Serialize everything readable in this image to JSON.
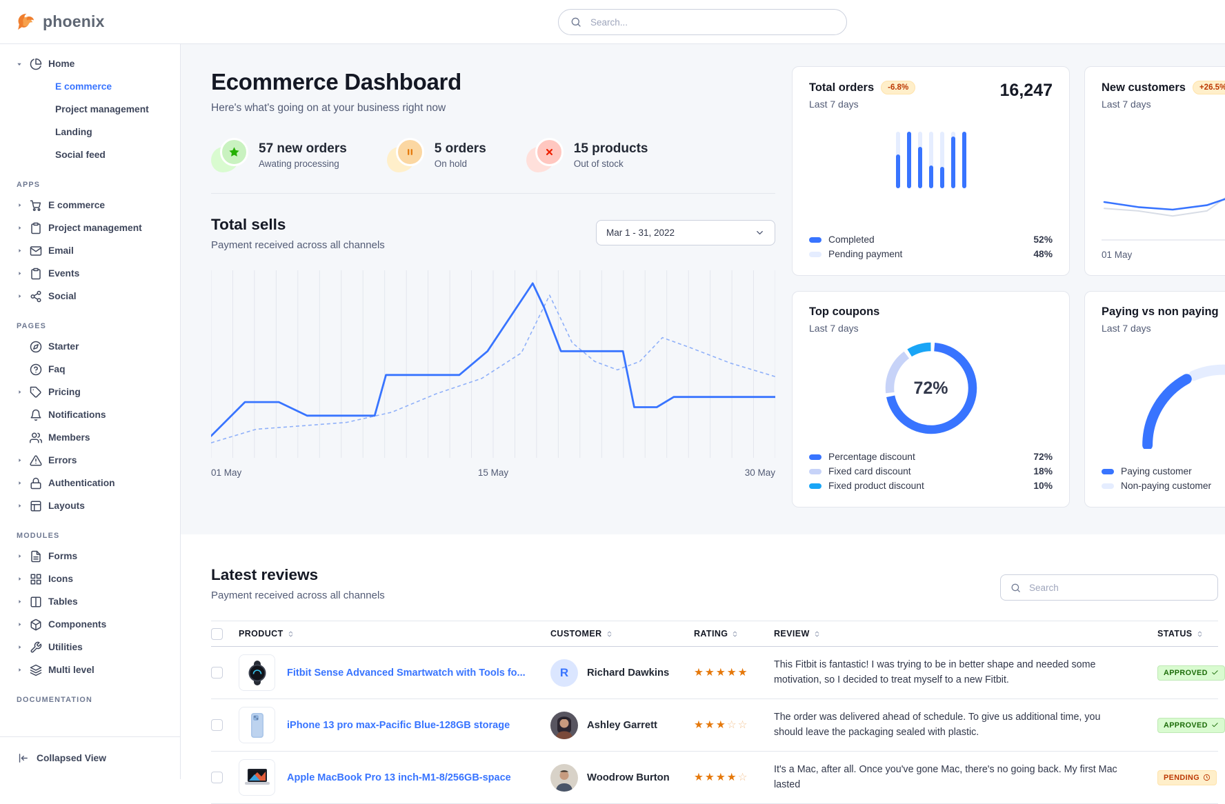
{
  "brand": {
    "name": "phoenix"
  },
  "topbar": {
    "search_placeholder": "Search..."
  },
  "theme": {
    "primary": "#3874ff",
    "primary_light": "#e5edff",
    "grid_line": "#e3e6ed",
    "dashed_line": "#8fb0f9",
    "prev_line_gray": "#d8dde6",
    "star": "#e5780b",
    "badge_warning_bg": "#ffefca",
    "badge_warning_border": "#ffe3ab",
    "badge_warning_text": "#bc3803",
    "badge_success_bg": "#d9fbd0",
    "badge_success_border": "#bee8b4",
    "badge_success_text": "#1c6c09"
  },
  "sidebar": {
    "home": {
      "label": "Home",
      "icon": "pie-chart",
      "children": [
        {
          "label": "E commerce",
          "active": true
        },
        {
          "label": "Project management",
          "active": false
        },
        {
          "label": "Landing",
          "active": false
        },
        {
          "label": "Social feed",
          "active": false
        }
      ]
    },
    "sections": [
      {
        "heading": "APPS",
        "items": [
          {
            "label": "E commerce",
            "icon": "shopping-cart",
            "caret": true
          },
          {
            "label": "Project management",
            "icon": "clipboard",
            "caret": true
          },
          {
            "label": "Email",
            "icon": "mail",
            "caret": true
          },
          {
            "label": "Events",
            "icon": "clipboard",
            "caret": true
          },
          {
            "label": "Social",
            "icon": "share",
            "caret": true
          }
        ]
      },
      {
        "heading": "PAGES",
        "items": [
          {
            "label": "Starter",
            "icon": "compass",
            "caret": false
          },
          {
            "label": "Faq",
            "icon": "help-circle",
            "caret": false
          },
          {
            "label": "Pricing",
            "icon": "tag",
            "caret": true
          },
          {
            "label": "Notifications",
            "icon": "bell",
            "caret": false
          },
          {
            "label": "Members",
            "icon": "users",
            "caret": false
          },
          {
            "label": "Errors",
            "icon": "alert-triangle",
            "caret": true
          },
          {
            "label": "Authentication",
            "icon": "lock",
            "caret": true
          },
          {
            "label": "Layouts",
            "icon": "layout",
            "caret": true
          }
        ]
      },
      {
        "heading": "MODULES",
        "items": [
          {
            "label": "Forms",
            "icon": "file-text",
            "caret": true
          },
          {
            "label": "Icons",
            "icon": "grid",
            "caret": true
          },
          {
            "label": "Tables",
            "icon": "columns",
            "caret": true
          },
          {
            "label": "Components",
            "icon": "package",
            "caret": true
          },
          {
            "label": "Utilities",
            "icon": "wrench",
            "caret": true
          },
          {
            "label": "Multi level",
            "icon": "layers",
            "caret": true
          }
        ]
      },
      {
        "heading": "DOCUMENTATION",
        "items": []
      }
    ],
    "footer": {
      "label": "Collapsed View",
      "icon": "collapse"
    }
  },
  "page_header": {
    "title": "Ecommerce Dashboard",
    "subtitle": "Here's what's going on at your business right now"
  },
  "stats": [
    {
      "title": "57 new orders",
      "subtitle": "Awating processing",
      "icon": "star",
      "accent": "#25b003",
      "circle": "#c9f2c0",
      "blob": "#d9fbd0"
    },
    {
      "title": "5 orders",
      "subtitle": "On hold",
      "icon": "pause",
      "accent": "#e5780b",
      "circle": "#fbd7a2",
      "blob": "#ffefca"
    },
    {
      "title": "15 products",
      "subtitle": "Out of stock",
      "icon": "x",
      "accent": "#ed2000",
      "circle": "#ffc7c0",
      "blob": "#ffe0db"
    }
  ],
  "total_sells": {
    "title": "Total sells",
    "subtitle": "Payment received across all channels",
    "date_range": "Mar 1 - 31, 2022",
    "x_labels": [
      "01 May",
      "15 May",
      "30 May"
    ],
    "gridlines": 26,
    "chart": {
      "type": "line",
      "ylim": [
        0,
        100
      ],
      "series": [
        {
          "name": "current",
          "style": "solid",
          "points": [
            [
              0,
              8
            ],
            [
              6,
              28
            ],
            [
              12,
              28
            ],
            [
              17,
              20
            ],
            [
              29,
              20
            ],
            [
              31,
              44
            ],
            [
              38,
              44
            ],
            [
              44,
              44
            ],
            [
              49,
              58
            ],
            [
              57,
              98
            ],
            [
              59,
              84
            ],
            [
              62,
              58
            ],
            [
              69,
              58
            ],
            [
              73,
              58
            ],
            [
              75,
              25
            ],
            [
              79,
              25
            ],
            [
              82,
              31
            ],
            [
              100,
              31
            ]
          ]
        },
        {
          "name": "previous",
          "style": "dashed",
          "points": [
            [
              0,
              4
            ],
            [
              8,
              12
            ],
            [
              16,
              14
            ],
            [
              24,
              16
            ],
            [
              32,
              22
            ],
            [
              40,
              33
            ],
            [
              48,
              42
            ],
            [
              55,
              57
            ],
            [
              60,
              91
            ],
            [
              64,
              63
            ],
            [
              68,
              52
            ],
            [
              72,
              47
            ],
            [
              76,
              52
            ],
            [
              80,
              66
            ],
            [
              85,
              60
            ],
            [
              92,
              51
            ],
            [
              100,
              43
            ]
          ]
        }
      ]
    }
  },
  "cards": {
    "total_orders": {
      "title": "Total orders",
      "badge": "-6.8%",
      "period": "Last 7 days",
      "value": "16,247",
      "chart": {
        "type": "bar",
        "bar_fill_pct": [
          60,
          100,
          73,
          40,
          38,
          92,
          100
        ]
      },
      "legend": [
        {
          "label": "Completed",
          "value": "52%",
          "color": "#3874ff"
        },
        {
          "label": "Pending payment",
          "value": "48%",
          "color": "#e5edff"
        }
      ]
    },
    "new_customers": {
      "title": "New customers",
      "badge": "+26.5%",
      "period": "Last 7 days",
      "x_label": "01 May",
      "chart": {
        "type": "line",
        "series": [
          {
            "name": "current",
            "color": "#3874ff",
            "values": [
              50,
              42,
              38,
              45,
              63,
              42,
              20,
              46
            ]
          },
          {
            "name": "previous",
            "color": "#d8dde6",
            "values": [
              40,
              36,
              28,
              36,
              74,
              56,
              36,
              60
            ]
          }
        ]
      }
    },
    "top_coupons": {
      "title": "Top coupons",
      "period": "Last 7 days",
      "center_value": "72%",
      "chart": {
        "type": "pie",
        "segments": [
          {
            "label": "Percentage discount",
            "value": "72%",
            "pct": 72,
            "color": "#3874ff"
          },
          {
            "label": "Fixed card discount",
            "value": "18%",
            "pct": 18,
            "color": "#c7d3f8"
          },
          {
            "label": "Fixed product discount",
            "value": "10%",
            "pct": 10,
            "color": "#19a5f6"
          }
        ]
      }
    },
    "paying": {
      "title": "Paying vs non paying",
      "period": "Last 7 days",
      "chart": {
        "type": "gauge",
        "segments": [
          {
            "label": "Paying customer",
            "pct": 34,
            "color": "#3874ff"
          },
          {
            "label": "Non-paying customer",
            "pct": 66,
            "color": "#e5edff"
          }
        ]
      }
    }
  },
  "reviews": {
    "title": "Latest reviews",
    "subtitle": "Payment received across all channels",
    "search_placeholder": "Search",
    "columns": [
      "PRODUCT",
      "CUSTOMER",
      "RATING",
      "REVIEW",
      "STATUS"
    ],
    "rows": [
      {
        "product": "Fitbit Sense Advanced Smartwatch with Tools fo...",
        "thumb": "watch",
        "customer": "Richard Dawkins",
        "avatar": {
          "type": "letter",
          "text": "R"
        },
        "rating": 5,
        "review": "This Fitbit is fantastic! I was trying to be in better shape and needed some motivation, so I decided to treat myself to a new Fitbit.",
        "status": {
          "label": "APPROVED",
          "tone": "success"
        }
      },
      {
        "product": "iPhone 13 pro max-Pacific Blue-128GB storage",
        "thumb": "phone",
        "customer": "Ashley Garrett",
        "avatar": {
          "type": "photo-female"
        },
        "rating": 3,
        "review": "The order was delivered ahead of schedule. To give us additional time, you should leave the packaging sealed with plastic.",
        "status": {
          "label": "APPROVED",
          "tone": "success"
        }
      },
      {
        "product": "Apple MacBook Pro 13 inch-M1-8/256GB-space",
        "thumb": "laptop",
        "customer": "Woodrow Burton",
        "avatar": {
          "type": "photo-male"
        },
        "rating": 4.5,
        "review": "It's a Mac, after all. Once you've gone Mac, there's no going back. My first Mac lasted",
        "status": {
          "label": "PENDING",
          "tone": "warning"
        }
      }
    ]
  }
}
